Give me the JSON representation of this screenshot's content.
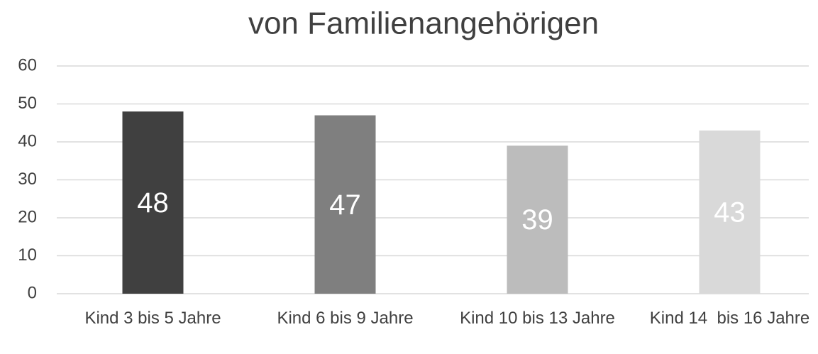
{
  "chart_data": {
    "type": "bar",
    "title": "von Familienangehörigen",
    "categories": [
      "Kind 3 bis 5 Jahre",
      "Kind 6 bis 9 Jahre",
      "Kind 10 bis 13 Jahre",
      "Kind 14  bis 16 Jahre"
    ],
    "values": [
      48,
      47,
      39,
      43
    ],
    "colors": [
      "#404040",
      "#7f7f7f",
      "#bcbcbc",
      "#d9d9d9"
    ],
    "ylim": [
      0,
      60
    ],
    "yticks": [
      0,
      10,
      20,
      30,
      40,
      50,
      60
    ],
    "grid": true
  }
}
